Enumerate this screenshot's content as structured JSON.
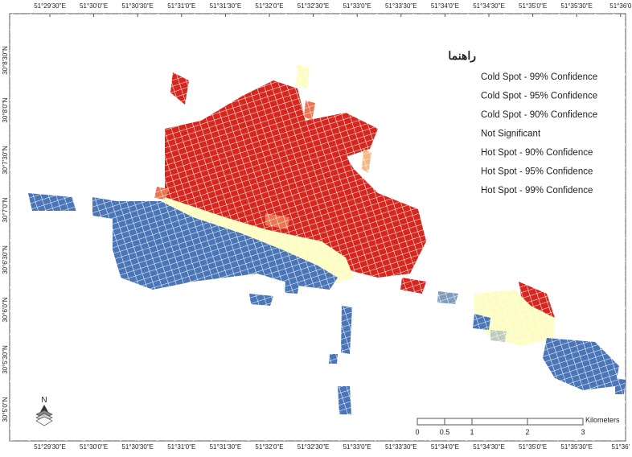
{
  "map": {
    "top_labels": [
      "51°29'30\"E",
      "51°30'0\"E",
      "51°30'30\"E",
      "51°31'0\"E",
      "51°31'30\"E",
      "51°32'0\"E",
      "51°32'30\"E",
      "51°33'0\"E",
      "51°33'30\"E",
      "51°34'0\"E",
      "51°34'30\"E",
      "51°35'0\"E",
      "51°35'30\"E",
      "51°36'0"
    ],
    "bottom_labels": [
      "51°29'30\"E",
      "51°30'0\"E",
      "51°30'30\"E",
      "51°31'0\"E",
      "51°31'30\"E",
      "51°32'0\"E",
      "51°32'30\"E",
      "51°33'0\"E",
      "51°33'30\"E",
      "51°34'0\"E",
      "51°34'30\"E",
      "51°35'0\"E",
      "51°35'30\"E",
      "51°36'"
    ],
    "left_labels": [
      "30°8'30\"N",
      "30°8'0\"N",
      "30°7'30\"N",
      "30°7'0\"N",
      "30°6'30\"N",
      "30°6'0\"N",
      "30°5'30\"N",
      "30°5'0\"N"
    ],
    "legend": {
      "title": "راهنما",
      "items": [
        {
          "label": "Cold Spot - 99% Confidence",
          "color": "#4a76b8"
        },
        {
          "label": "Cold Spot - 95% Confidence",
          "color": "#7f9cbd"
        },
        {
          "label": "Cold Spot - 90% Confidence",
          "color": "#bfcbbd"
        },
        {
          "label": "Not Significant",
          "color": "#fdfdc0"
        },
        {
          "label": "Hot Spot - 90% Confidence",
          "color": "#f8b580"
        },
        {
          "label": "Hot Spot - 95% Confidence",
          "color": "#ec7450"
        },
        {
          "label": "Hot Spot - 99% Confidence",
          "color": "#d7261e"
        }
      ]
    },
    "scale_bar": {
      "labels": [
        "0",
        "0.5",
        "1",
        "2",
        "3"
      ],
      "unit": "Kilometers"
    },
    "north": "N"
  }
}
